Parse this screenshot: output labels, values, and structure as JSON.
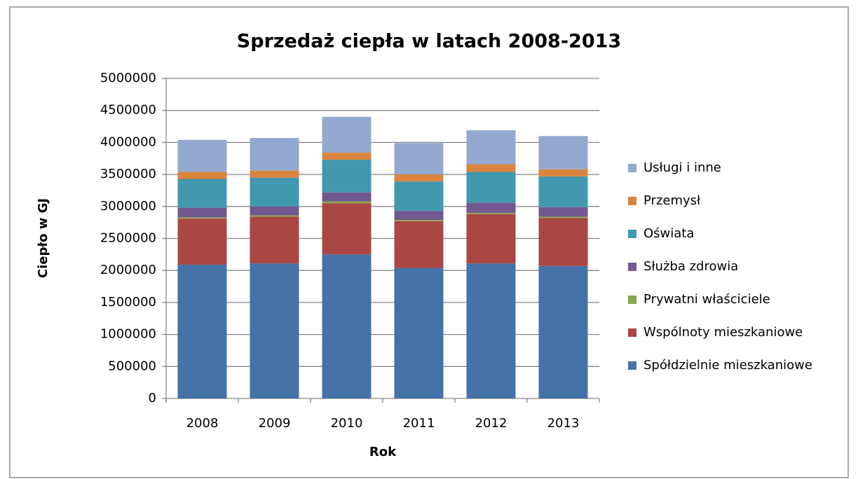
{
  "chart_data": {
    "type": "bar",
    "stacked": true,
    "title": "Sprzedaż ciepła w latach 2008-2013",
    "x_label": "Rok",
    "y_label": "Ciepło w GJ",
    "categories": [
      "2008",
      "2009",
      "2010",
      "2011",
      "2012",
      "2013"
    ],
    "series": [
      {
        "name": "Spółdzielnie mieszkaniowe",
        "color": "#4572a7",
        "values": [
          2090000,
          2110000,
          2250000,
          2040000,
          2110000,
          2070000
        ]
      },
      {
        "name": "Wspólnoty mieszkaniowe",
        "color": "#aa4643",
        "values": [
          720000,
          730000,
          800000,
          730000,
          770000,
          750000
        ]
      },
      {
        "name": "Prywatni właściciele",
        "color": "#89a54e",
        "values": [
          20000,
          20000,
          30000,
          20000,
          20000,
          20000
        ]
      },
      {
        "name": "Służba zdrowia",
        "color": "#71588f",
        "values": [
          150000,
          140000,
          140000,
          140000,
          160000,
          150000
        ]
      },
      {
        "name": "Oświata",
        "color": "#4198af",
        "values": [
          450000,
          450000,
          510000,
          460000,
          480000,
          480000
        ]
      },
      {
        "name": "Przemysł",
        "color": "#db843d",
        "values": [
          110000,
          110000,
          110000,
          110000,
          120000,
          110000
        ]
      },
      {
        "name": "Usługi i inne",
        "color": "#93a9cf",
        "values": [
          500000,
          510000,
          560000,
          490000,
          530000,
          520000
        ]
      }
    ],
    "ylim": [
      0,
      5000000
    ],
    "yticks": [
      0,
      500000,
      1000000,
      1500000,
      2000000,
      2500000,
      3000000,
      3500000,
      4000000,
      4500000,
      5000000
    ],
    "grid": true,
    "legend": "right"
  }
}
